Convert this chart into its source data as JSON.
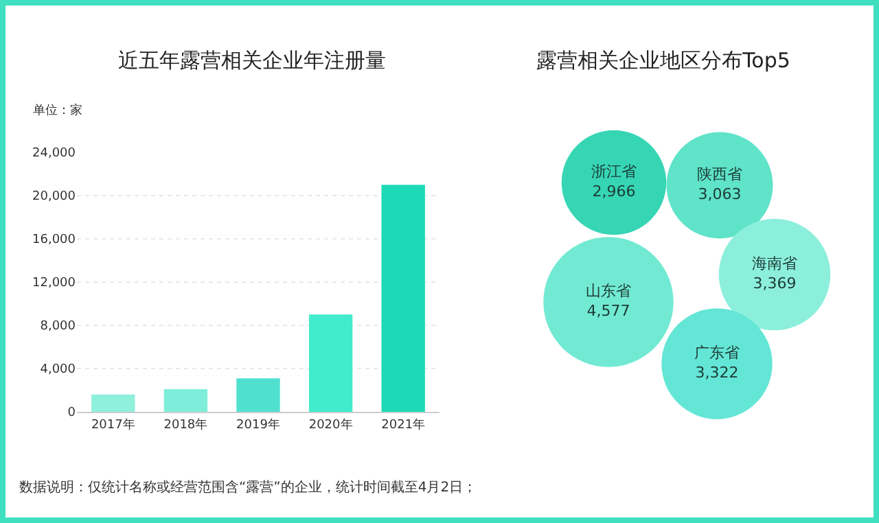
{
  "chart_data": [
    {
      "type": "bar",
      "title": "近五年露营相关企业年注册量",
      "ylabel": "单位：家",
      "categories": [
        "2017年",
        "2018年",
        "2019年",
        "2020年",
        "2021年"
      ],
      "values": [
        1600,
        2100,
        3100,
        9000,
        21000
      ],
      "colors": [
        "#8ff0dc",
        "#7eeeda",
        "#50e0d0",
        "#40eccc",
        "#1ed9b5"
      ],
      "ylim": [
        0,
        24000
      ],
      "yticks": [
        0,
        {
          "value": 4000,
          "label": "4,000"
        },
        {
          "value": 8000,
          "label": "8,000"
        },
        {
          "value": 12000,
          "label": "12,000"
        },
        {
          "value": 16000,
          "label": "16,000"
        },
        {
          "value": 20000,
          "label": "20,000"
        },
        {
          "value": 24000,
          "label": "24,000"
        }
      ],
      "grid": "y",
      "annotations": [
        "数据说明：仅统计名称或经营范围含“露营”的企业，统计时间截至4月2日；"
      ]
    },
    {
      "type": "other",
      "title": "露营相关企业地区分布Top5",
      "categories": [
        "浙江省",
        "陕西省",
        "山东省",
        "海南省",
        "广东省"
      ],
      "values": [
        2966,
        3063,
        4577,
        3369,
        3322
      ],
      "colors": [
        "#36d6b5",
        "#5fe3c9",
        "#72ead3",
        "#8cefdc",
        "#64e6d6"
      ],
      "value_labels": [
        "2,966",
        "3,063",
        "4,577",
        "3,369",
        "3,322"
      ]
    }
  ]
}
